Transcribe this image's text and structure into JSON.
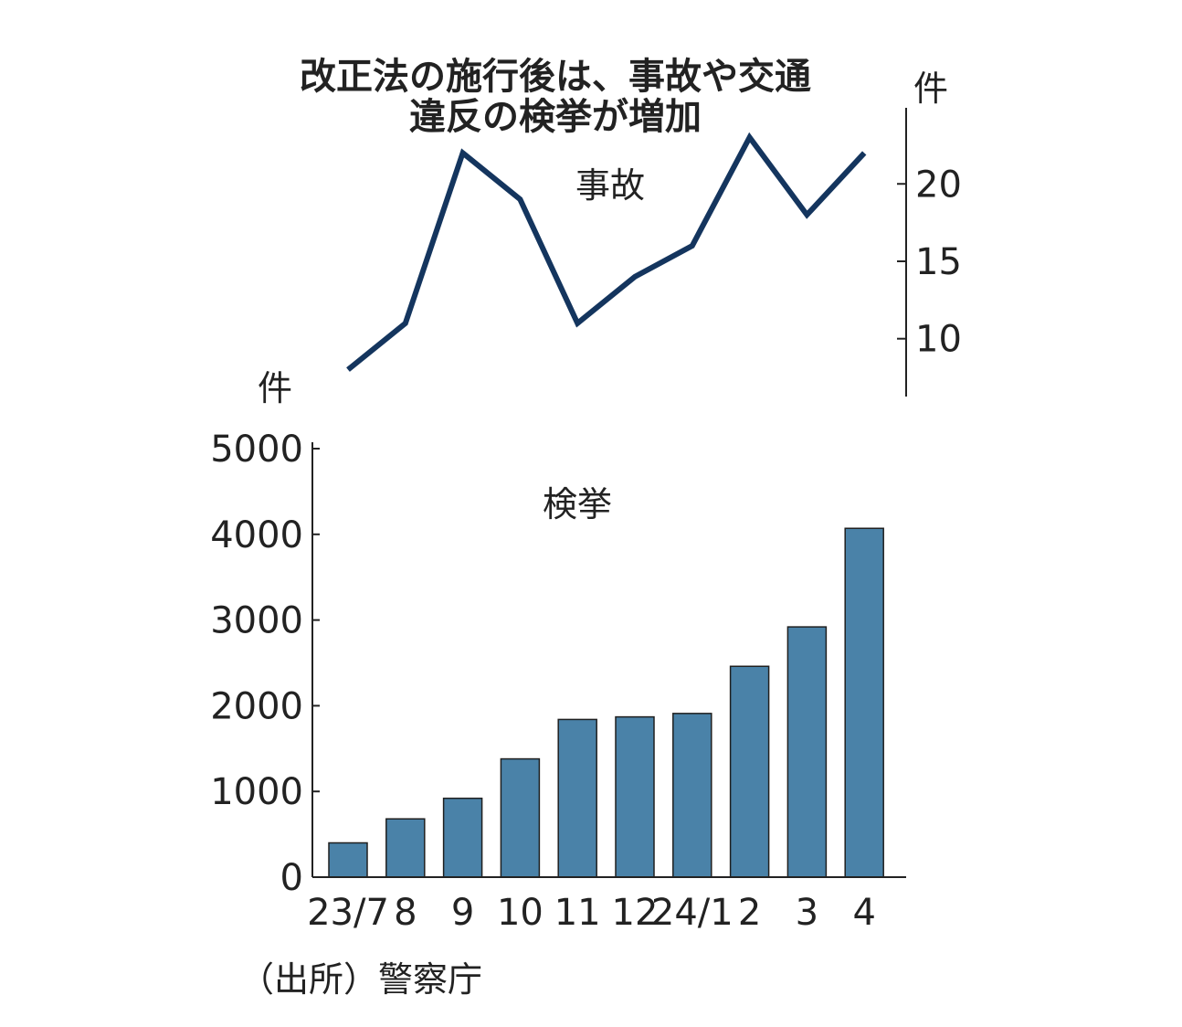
{
  "chart_data": [
    {
      "type": "line",
      "title": "改正法の施行後は、事故や交通違反の検挙が増加",
      "title_lines": [
        "改正法の施行後は、事故や交通",
        "違反の検挙が増加"
      ],
      "series_label": "事故",
      "unit": "件",
      "ylim": [
        6.5,
        24.5
      ],
      "y_ticks": [
        10,
        15,
        20
      ],
      "axis_side": "right",
      "color": "#14355e",
      "categories": [
        "23/7",
        "8",
        "9",
        "10",
        "11",
        "12",
        "24/1",
        "2",
        "3",
        "4"
      ],
      "values": [
        8,
        11,
        22,
        19,
        11,
        14,
        16,
        23,
        18,
        22
      ]
    },
    {
      "type": "bar",
      "series_label": "検挙",
      "unit": "件",
      "ylim": [
        0,
        5000
      ],
      "y_ticks": [
        0,
        1000,
        2000,
        3000,
        4000,
        5000
      ],
      "axis_side": "left",
      "color": "#4a82a8",
      "categories": [
        "23/7",
        "8",
        "9",
        "10",
        "11",
        "12",
        "24/1",
        "2",
        "3",
        "4"
      ],
      "values": [
        400,
        680,
        920,
        1380,
        1840,
        1870,
        1910,
        2460,
        2920,
        4070
      ]
    }
  ],
  "source": "（出所）警察庁"
}
